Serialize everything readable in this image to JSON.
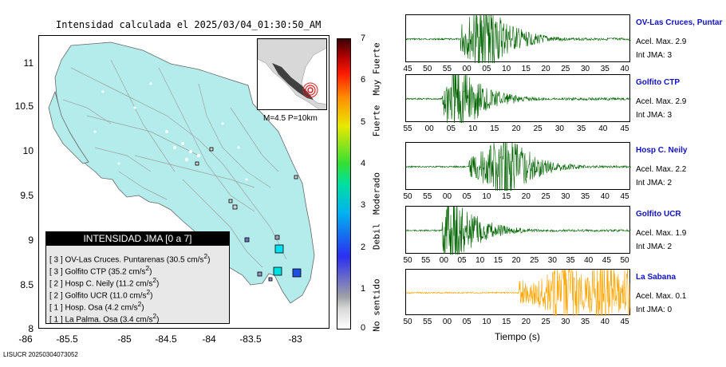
{
  "map": {
    "title": "Intensidad calculada el 2025/03/04_01:30:50_AM",
    "y_ticks": [
      "11",
      "10.5",
      "10",
      "9.5",
      "9",
      "8.5",
      "8"
    ],
    "x_ticks": [
      "-86",
      "-85.5",
      "-85",
      "-84.5",
      "-84",
      "-83.5",
      "-83"
    ],
    "inset_caption": "M=4.5 P=10km",
    "footer": "LISUCR 20250304073052",
    "colors": {
      "land": "#b4ecec",
      "roads": "#a0a0a0",
      "epicenter": "#e02020"
    }
  },
  "legend": {
    "header": "INTENSIDAD JMA [0 a 7]",
    "rows": [
      {
        "prefix": "[ 3 ]",
        "text": "OV-Las Cruces. Puntarenas (30.5 cm/s",
        "sup": "2",
        ")": ")"
      },
      {
        "prefix": "[ 3 ]",
        "text": "Golfito CTP (35.2 cm/s",
        "sup": "2",
        ")": ")"
      },
      {
        "prefix": "[ 2 ]",
        "text": "Hosp C. Neily (11.2 cm/s",
        "sup": "2",
        ")": ")"
      },
      {
        "prefix": "[ 2 ]",
        "text": "Golfito UCR (11.0 cm/s",
        "sup": "2",
        ")": ")"
      },
      {
        "prefix": "[ 1 ]",
        "text": "Hosp. Osa (4.2 cm/s",
        "sup": "2",
        ")": ")"
      },
      {
        "prefix": "[ 1 ]",
        "text": "La Palma. Osa (3.4 cm/s",
        "sup": "2",
        ")": ")"
      }
    ]
  },
  "scale": {
    "ticks": [
      "7",
      "6",
      "5",
      "4",
      "3",
      "2",
      "1",
      "0"
    ],
    "labels": [
      "Muy Fuerte",
      "Fuerte",
      "Moderado",
      "Debil",
      "No sentido"
    ]
  },
  "stations": [
    {
      "name": "OV-Las Cruces, Puntar",
      "acel": "Acel. Max. 2.9",
      "int": "Int JMA: 3",
      "color": "#006400",
      "ticks": [
        "45",
        "50",
        "55",
        "00",
        "05",
        "10",
        "15",
        "20",
        "25",
        "30",
        "35",
        "40"
      ]
    },
    {
      "name": "Golfito CTP",
      "acel": "Acel. Max. 2.9",
      "int": "Int JMA: 3",
      "color": "#006400",
      "ticks": [
        "55",
        "00",
        "05",
        "10",
        "15",
        "20",
        "25",
        "30",
        "35",
        "40",
        "45"
      ]
    },
    {
      "name": "Hosp C. Neily",
      "acel": "Acel. Max. 2.2",
      "int": "Int JMA: 2",
      "color": "#006400",
      "ticks": [
        "50",
        "55",
        "00",
        "05",
        "10",
        "15",
        "20",
        "25",
        "30",
        "35",
        "40",
        "45"
      ]
    },
    {
      "name": "Golfito UCR",
      "acel": "Acel. Max. 1.9",
      "int": "Int JMA: 2",
      "color": "#006400",
      "ticks": [
        "50",
        "55",
        "00",
        "05",
        "10",
        "15",
        "20",
        "25",
        "30",
        "35",
        "40",
        "45",
        "50"
      ]
    },
    {
      "name": "La Sabana",
      "acel": "Acel. Max. 0.1",
      "int": "Int JMA: 0",
      "color": "#ffa500",
      "ticks": [
        "50",
        "55",
        "00",
        "05",
        "10",
        "15",
        "20",
        "25",
        "30",
        "35",
        "40",
        "45"
      ]
    }
  ],
  "time_axis_label": "Tiempo (s)"
}
